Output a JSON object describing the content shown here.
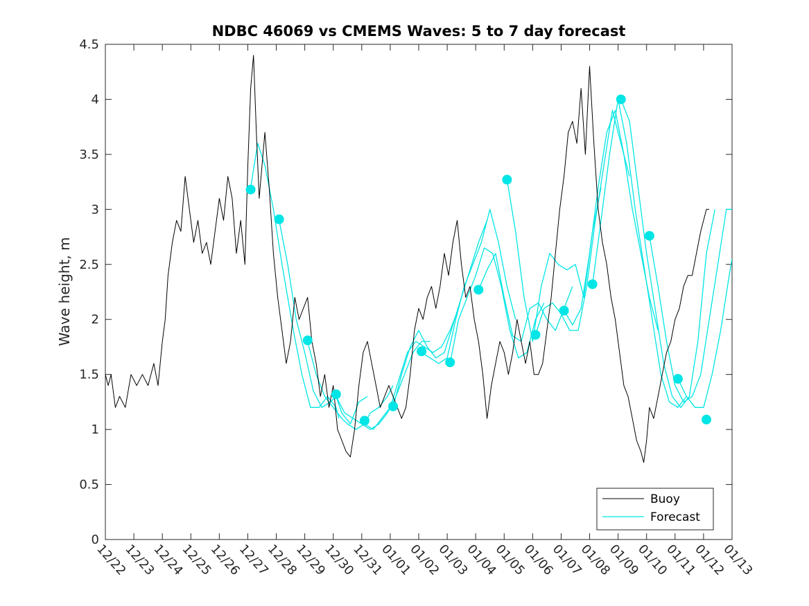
{
  "chart_data": {
    "type": "line",
    "title": "NDBC 46069 vs CMEMS Waves: 5 to 7 day forecast",
    "xlabel": "",
    "ylabel": "Wave height, m",
    "xlim": [
      0,
      22
    ],
    "ylim": [
      0,
      4.5
    ],
    "yticks": [
      0,
      0.5,
      1,
      1.5,
      2,
      2.5,
      3,
      3.5,
      4,
      4.5
    ],
    "ytick_labels": [
      "0",
      "0.5",
      "1",
      "1.5",
      "2",
      "2.5",
      "3",
      "3.5",
      "4",
      "4.5"
    ],
    "xticks": [
      0,
      1,
      2,
      3,
      4,
      5,
      6,
      7,
      8,
      9,
      10,
      11,
      12,
      13,
      14,
      15,
      16,
      17,
      18,
      19,
      20,
      21,
      22
    ],
    "xtick_labels": [
      "12/22",
      "12/23",
      "12/24",
      "12/25",
      "12/26",
      "12/27",
      "12/28",
      "12/29",
      "12/30",
      "12/31",
      "01/01",
      "01/02",
      "01/03",
      "01/04",
      "01/05",
      "01/06",
      "01/07",
      "01/08",
      "01/09",
      "01/10",
      "01/11",
      "01/12",
      "01/13"
    ],
    "legend": {
      "location": "bottom-right",
      "entries": [
        "Buoy",
        "Forecast"
      ]
    },
    "colors": {
      "buoy": "#000000",
      "forecast": "#00e5e5",
      "axes": "#262626"
    },
    "buoy": {
      "name": "Buoy",
      "x": [
        0,
        0.1,
        0.2,
        0.35,
        0.5,
        0.7,
        0.9,
        1.1,
        1.3,
        1.5,
        1.7,
        1.85,
        2.0,
        2.1,
        2.2,
        2.35,
        2.5,
        2.65,
        2.8,
        2.95,
        3.1,
        3.25,
        3.4,
        3.55,
        3.7,
        3.85,
        4.0,
        4.15,
        4.3,
        4.45,
        4.6,
        4.75,
        4.9,
        5.0,
        5.1,
        5.2,
        5.3,
        5.4,
        5.5,
        5.6,
        5.75,
        5.9,
        6.05,
        6.2,
        6.35,
        6.5,
        6.65,
        6.8,
        6.95,
        7.1,
        7.25,
        7.4,
        7.55,
        7.7,
        7.85,
        8.0,
        8.15,
        8.3,
        8.45,
        8.6,
        8.75,
        8.9,
        9.05,
        9.2,
        9.35,
        9.5,
        9.65,
        9.8,
        9.95,
        10.1,
        10.25,
        10.4,
        10.55,
        10.7,
        10.85,
        11.0,
        11.15,
        11.3,
        11.45,
        11.6,
        11.75,
        11.9,
        12.05,
        12.2,
        12.35,
        12.5,
        12.65,
        12.8,
        12.95,
        13.1,
        13.25,
        13.4,
        13.55,
        13.7,
        13.85,
        14.0,
        14.15,
        14.3,
        14.45,
        14.6,
        14.75,
        14.9,
        15.05,
        15.2,
        15.35,
        15.5,
        15.65,
        15.8,
        15.95,
        16.1,
        16.25,
        16.4,
        16.55,
        16.7,
        16.85,
        17.0,
        17.15,
        17.3,
        17.45,
        17.6,
        17.75,
        17.9,
        18.05,
        18.2,
        18.35,
        18.5,
        18.65,
        18.8,
        18.9,
        19.0,
        19.1,
        19.25,
        19.4,
        19.55,
        19.7,
        19.85,
        20.0,
        20.15,
        20.3,
        20.45,
        20.6,
        20.75,
        20.9,
        21.0,
        21.1,
        21.2
      ],
      "y": [
        1.5,
        1.4,
        1.5,
        1.2,
        1.3,
        1.2,
        1.5,
        1.4,
        1.5,
        1.4,
        1.6,
        1.4,
        1.8,
        2.0,
        2.4,
        2.7,
        2.9,
        2.8,
        3.3,
        3.0,
        2.7,
        2.9,
        2.6,
        2.7,
        2.5,
        2.8,
        3.1,
        2.9,
        3.3,
        3.1,
        2.6,
        2.9,
        2.5,
        3.4,
        4.1,
        4.4,
        3.7,
        3.1,
        3.4,
        3.7,
        3.2,
        2.6,
        2.2,
        1.9,
        1.6,
        1.8,
        2.2,
        2.0,
        2.1,
        2.2,
        1.8,
        1.6,
        1.3,
        1.5,
        1.2,
        1.4,
        1.0,
        0.9,
        0.8,
        0.75,
        1.0,
        1.4,
        1.7,
        1.8,
        1.6,
        1.4,
        1.2,
        1.3,
        1.4,
        1.3,
        1.2,
        1.1,
        1.2,
        1.5,
        1.9,
        2.1,
        2.0,
        2.2,
        2.3,
        2.1,
        2.3,
        2.6,
        2.4,
        2.7,
        2.9,
        2.5,
        2.2,
        2.3,
        2.0,
        1.8,
        1.5,
        1.1,
        1.4,
        1.6,
        1.8,
        1.7,
        1.5,
        1.7,
        2.0,
        1.8,
        1.6,
        1.8,
        1.5,
        1.5,
        1.6,
        1.9,
        2.2,
        2.6,
        3.0,
        3.3,
        3.7,
        3.8,
        3.6,
        4.1,
        3.5,
        4.3,
        3.6,
        3.0,
        2.7,
        2.5,
        2.2,
        2.0,
        1.7,
        1.4,
        1.3,
        1.1,
        0.9,
        0.8,
        0.7,
        0.9,
        1.2,
        1.1,
        1.3,
        1.5,
        1.7,
        1.8,
        2.0,
        2.1,
        2.3,
        2.4,
        2.4,
        2.6,
        2.8,
        2.9,
        3.0,
        3.0
      ]
    },
    "forecast": {
      "name": "Forecast",
      "runs": [
        {
          "x": [
            5.1,
            5.35,
            5.6,
            5.9,
            6.2,
            6.6,
            6.9,
            7.2,
            7.5,
            7.8,
            8.1,
            8.2
          ],
          "y": [
            3.2,
            3.6,
            3.4,
            3.0,
            2.5,
            1.9,
            1.5,
            1.2,
            1.2,
            1.3,
            1.2,
            1.1
          ]
        },
        {
          "x": [
            6.1,
            6.4,
            6.7,
            7.0,
            7.3,
            7.6,
            7.9,
            8.1,
            8.3,
            8.6,
            8.9,
            9.2
          ],
          "y": [
            2.9,
            2.5,
            2.0,
            1.7,
            1.35,
            1.2,
            1.25,
            1.3,
            1.15,
            1.05,
            1.25,
            1.3
          ]
        },
        {
          "x": [
            7.1,
            7.4,
            7.7,
            8.0,
            8.3,
            8.5,
            8.8,
            9.1,
            9.3,
            9.6,
            9.9,
            10.1
          ],
          "y": [
            1.8,
            1.5,
            1.3,
            1.2,
            1.1,
            1.05,
            1.0,
            1.05,
            1.15,
            1.2,
            1.3,
            1.4
          ]
        },
        {
          "x": [
            8.1,
            8.4,
            8.7,
            9.0,
            9.3,
            9.6,
            9.9,
            10.2,
            10.5,
            10.8,
            11.1,
            11.4
          ],
          "y": [
            1.3,
            1.15,
            1.1,
            1.05,
            1.0,
            1.05,
            1.15,
            1.3,
            1.5,
            1.7,
            1.8,
            1.8
          ]
        },
        {
          "x": [
            9.1,
            9.4,
            9.7,
            10.0,
            10.3,
            10.6,
            10.9,
            11.2,
            11.5,
            11.8,
            12.1,
            12.4
          ],
          "y": [
            1.05,
            1.0,
            1.1,
            1.2,
            1.45,
            1.7,
            1.8,
            1.75,
            1.7,
            1.75,
            1.9,
            2.1
          ]
        },
        {
          "x": [
            10.1,
            10.4,
            10.7,
            11.0,
            11.3,
            11.6,
            11.9,
            12.2,
            12.5,
            12.8,
            13.1,
            13.4
          ],
          "y": [
            1.2,
            1.5,
            1.75,
            1.9,
            1.75,
            1.65,
            1.7,
            1.95,
            2.2,
            2.45,
            2.7,
            2.9
          ]
        },
        {
          "x": [
            11.1,
            11.4,
            11.7,
            12.0,
            12.3,
            12.6,
            12.9,
            13.2,
            13.5,
            13.8,
            14.1,
            14.4
          ],
          "y": [
            1.7,
            1.65,
            1.6,
            1.65,
            2.0,
            2.3,
            2.5,
            2.7,
            3.0,
            2.7,
            2.3,
            2.0
          ]
        },
        {
          "x": [
            12.1,
            12.4,
            12.7,
            13.0,
            13.3,
            13.6,
            13.9,
            14.2,
            14.5,
            14.8,
            15.1,
            15.4
          ],
          "y": [
            1.6,
            2.0,
            2.2,
            2.4,
            2.65,
            2.6,
            2.3,
            1.9,
            1.65,
            1.7,
            2.0,
            2.15
          ]
        },
        {
          "x": [
            13.1,
            13.4,
            13.7,
            14.0,
            14.3,
            14.6,
            14.9,
            15.2,
            15.5,
            15.8,
            16.1,
            16.4
          ],
          "y": [
            2.27,
            2.45,
            2.6,
            2.2,
            1.85,
            1.8,
            2.1,
            2.15,
            2.0,
            1.9,
            2.1,
            2.3
          ]
        },
        {
          "x": [
            14.1,
            14.4,
            14.7,
            15.0,
            15.3,
            15.6,
            15.9,
            16.2,
            16.5,
            16.8,
            17.1,
            17.4
          ],
          "y": [
            3.27,
            2.8,
            2.2,
            1.8,
            2.3,
            2.6,
            2.5,
            2.45,
            2.5,
            2.2,
            2.8,
            3.2
          ]
        },
        {
          "x": [
            15.1,
            15.4,
            15.7,
            16.0,
            16.3,
            16.6,
            16.9,
            17.2,
            17.5,
            17.8,
            18.1,
            18.4
          ],
          "y": [
            1.86,
            2.1,
            2.15,
            2.05,
            1.9,
            1.9,
            2.3,
            2.9,
            3.4,
            3.9,
            3.6,
            3.3
          ]
        },
        {
          "x": [
            16.1,
            16.4,
            16.7,
            17.0,
            17.3,
            17.6,
            17.9,
            18.2,
            18.5,
            18.8,
            19.1,
            19.4
          ],
          "y": [
            2.08,
            1.95,
            2.1,
            2.6,
            3.2,
            3.7,
            3.9,
            3.5,
            3.0,
            2.6,
            2.2,
            1.9
          ]
        },
        {
          "x": [
            17.1,
            17.4,
            17.7,
            18.0,
            18.3,
            18.6,
            18.9,
            19.2,
            19.5,
            19.8,
            20.1,
            20.4
          ],
          "y": [
            2.32,
            2.9,
            3.5,
            4.0,
            3.6,
            3.0,
            2.5,
            2.0,
            1.5,
            1.25,
            1.2,
            1.3
          ]
        },
        {
          "x": [
            18.1,
            18.4,
            18.7,
            19.0,
            19.3,
            19.6,
            19.9,
            20.2,
            20.5,
            20.8,
            21.1,
            21.4
          ],
          "y": [
            4.0,
            3.8,
            3.2,
            2.6,
            2.1,
            1.6,
            1.3,
            1.2,
            1.3,
            1.8,
            2.6,
            3.0
          ]
        },
        {
          "x": [
            19.1,
            19.4,
            19.7,
            20.0,
            20.3,
            20.6,
            20.9,
            21.2,
            21.5,
            21.8,
            22.0
          ],
          "y": [
            2.76,
            2.3,
            1.8,
            1.4,
            1.25,
            1.3,
            1.5,
            2.0,
            2.5,
            3.0,
            3.0
          ]
        },
        {
          "x": [
            20.1,
            20.4,
            20.7,
            21.0,
            21.3,
            21.6,
            21.9,
            22.0
          ],
          "y": [
            1.46,
            1.3,
            1.2,
            1.2,
            1.5,
            1.9,
            2.4,
            2.55
          ]
        }
      ],
      "markers": {
        "x": [
          5.1,
          6.1,
          7.1,
          8.1,
          9.1,
          10.1,
          11.1,
          12.1,
          13.1,
          14.1,
          15.1,
          16.1,
          17.1,
          18.1,
          19.1,
          20.1,
          21.1
        ],
        "y": [
          3.18,
          2.91,
          1.81,
          1.32,
          1.08,
          1.21,
          1.71,
          1.61,
          2.27,
          3.27,
          1.86,
          2.08,
          2.32,
          4.0,
          2.76,
          1.46,
          1.09
        ]
      }
    }
  }
}
